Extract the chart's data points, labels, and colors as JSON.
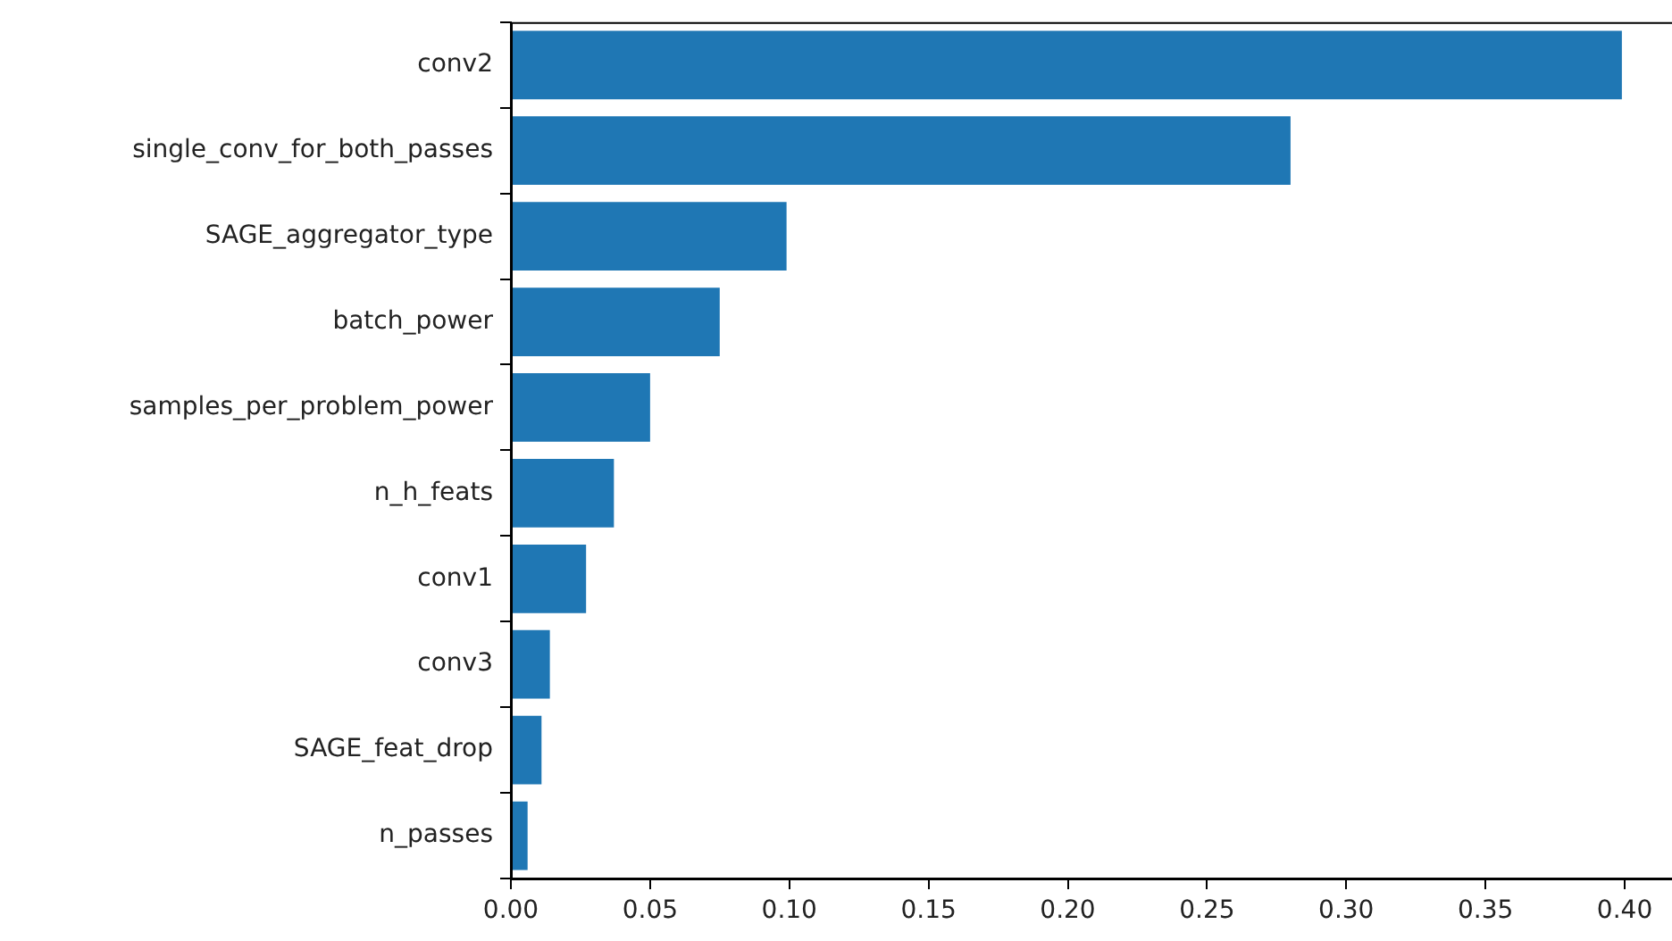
{
  "chart_data": {
    "type": "bar",
    "orientation": "horizontal",
    "categories": [
      "conv2",
      "single_conv_for_both_passes",
      "SAGE_aggregator_type",
      "batch_power",
      "samples_per_problem_power",
      "n_h_feats",
      "conv1",
      "conv3",
      "SAGE_feat_drop",
      "n_passes"
    ],
    "values": [
      0.399,
      0.28,
      0.099,
      0.075,
      0.05,
      0.037,
      0.027,
      0.014,
      0.011,
      0.006
    ],
    "color": "#1f77b4",
    "xlim": [
      0,
      0.417
    ],
    "xticks": [
      {
        "value": 0,
        "label": "0.00"
      },
      {
        "value": 0.05,
        "label": "0.05"
      },
      {
        "value": 0.1,
        "label": "0.10"
      },
      {
        "value": 0.15,
        "label": "0.15"
      },
      {
        "value": 0.2,
        "label": "0.20"
      },
      {
        "value": 0.25,
        "label": "0.25"
      },
      {
        "value": 0.3,
        "label": "0.30"
      },
      {
        "value": 0.35,
        "label": "0.35"
      },
      {
        "value": 0.4,
        "label": "0.40"
      }
    ],
    "grid": false,
    "legend": false
  }
}
